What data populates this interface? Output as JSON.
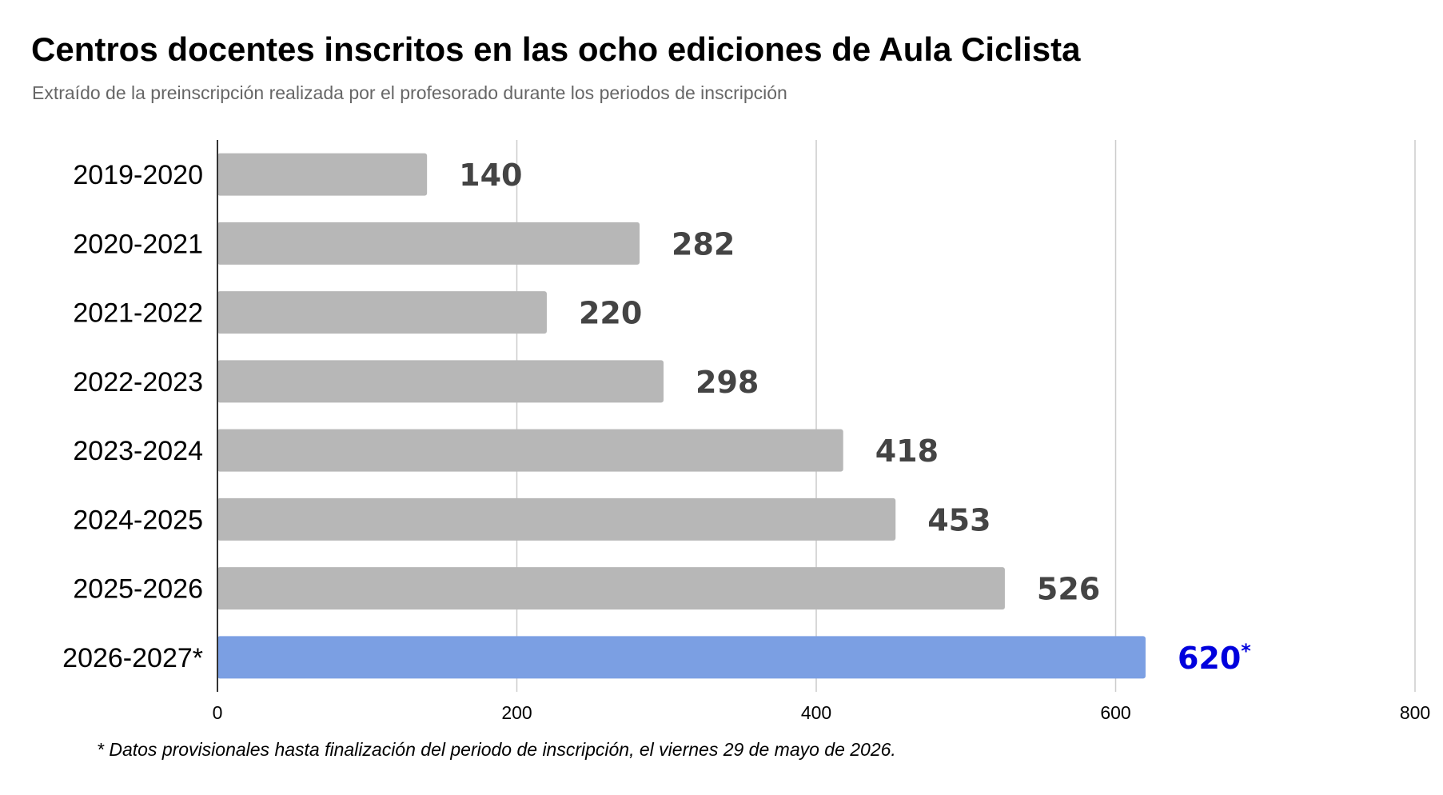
{
  "chart_data": {
    "type": "bar",
    "orientation": "horizontal",
    "title": "Centros docentes inscritos en las ocho ediciones de Aula Ciclista",
    "subtitle": "Extraído de la preinscripción realizada por el profesorado durante los periodos de inscripción",
    "categories": [
      "2019-2020",
      "2020-2021",
      "2021-2022",
      "2022-2023",
      "2023-2024",
      "2024-2025",
      "2025-2026",
      "2026-2027*"
    ],
    "values": [
      140,
      282,
      220,
      298,
      418,
      453,
      526,
      620
    ],
    "value_labels": [
      "140",
      "282",
      "220",
      "298",
      "418",
      "453",
      "526",
      "620"
    ],
    "value_marks": [
      "",
      "",
      "",
      "",
      "",
      "",
      "",
      "*"
    ],
    "xlim": [
      0,
      800
    ],
    "x_ticks": [
      0,
      200,
      400,
      600,
      800
    ],
    "x_tick_labels": [
      "0",
      "200",
      "400",
      "600",
      "800"
    ],
    "grid": "vertical",
    "legend": "none",
    "colors": {
      "bar_default": "#b7b7b7",
      "bar_highlight": "#7b9fe3",
      "label_default": "#444444",
      "label_highlight": "#0000dd",
      "grid": "#cccccc",
      "axis": "#333333"
    },
    "highlight_index": 7,
    "footnote": "* Datos provisionales hasta finalización del periodo de inscripción, el viernes 29 de mayo de 2026."
  }
}
